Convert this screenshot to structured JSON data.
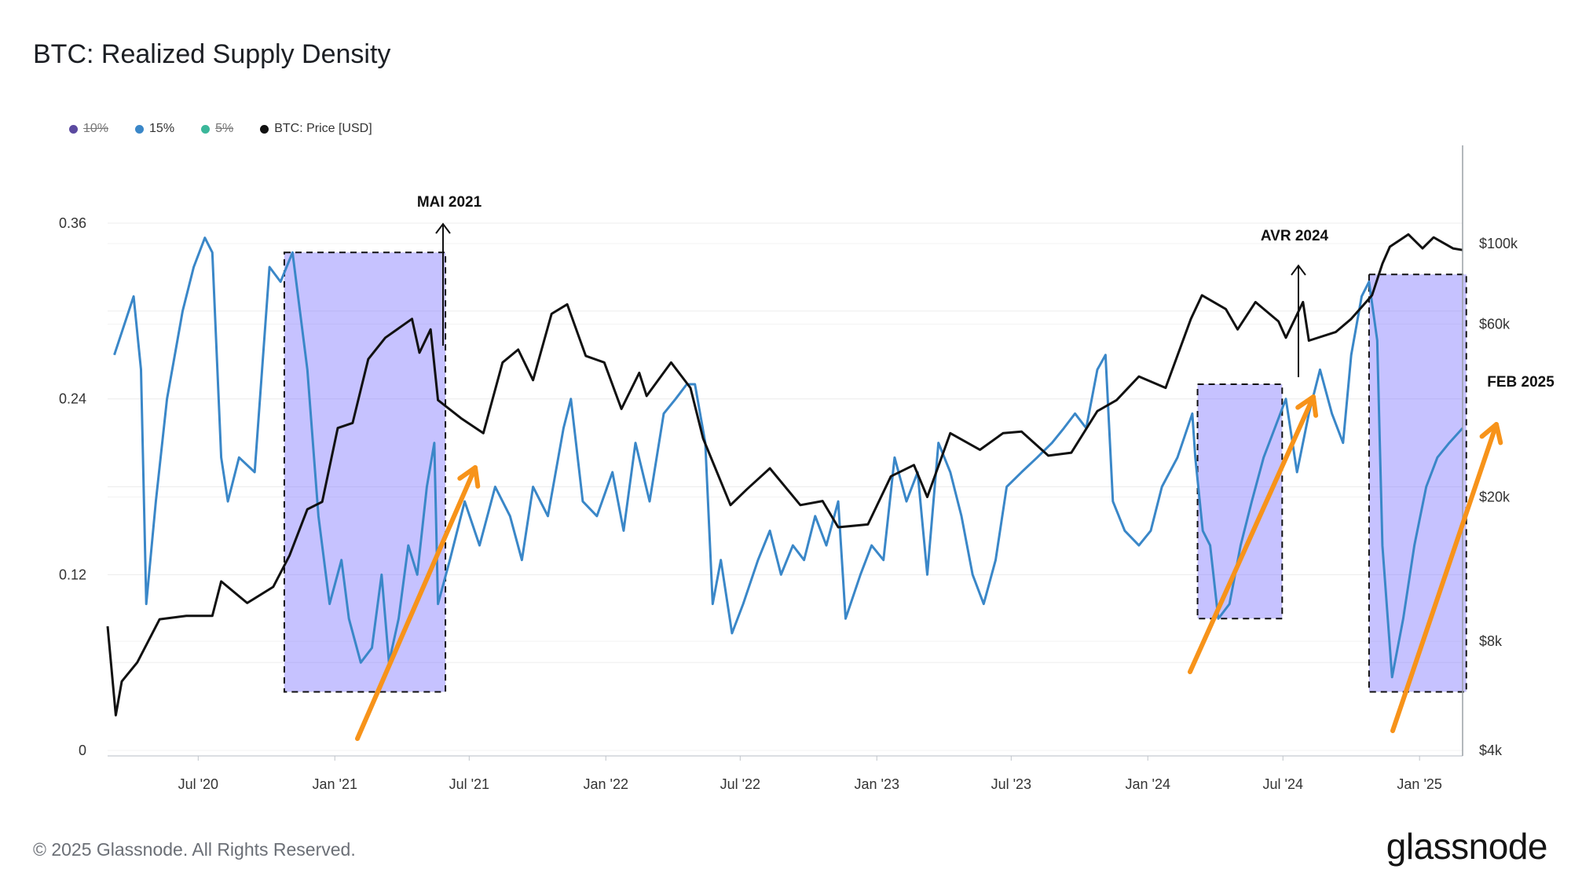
{
  "header": {
    "title": "BTC: Realized Supply Density"
  },
  "legend": [
    {
      "label": "10%",
      "color": "#5b4aa0",
      "active": false
    },
    {
      "label": "15%",
      "color": "#3a87c8",
      "active": true
    },
    {
      "label": "5%",
      "color": "#3bb79a",
      "active": false
    },
    {
      "label": "BTC: Price [USD]",
      "color": "#111111",
      "active": true
    }
  ],
  "footer": {
    "copyright": "© 2025 Glassnode. All Rights Reserved.",
    "brand": "glassnode"
  },
  "chart_data": {
    "type": "line",
    "title": "BTC: Realized Supply Density",
    "x_ticks": [
      "Jul '20",
      "Jan '21",
      "Jul '21",
      "Jan '22",
      "Jul '22",
      "Jan '23",
      "Jul '23",
      "Jan '24",
      "Jul '24",
      "Jan '25"
    ],
    "x_range": [
      "2020-03-01",
      "2025-02-28"
    ],
    "y_left": {
      "ticks": [
        "0.36",
        "0.24",
        "0.12",
        "0"
      ],
      "range": [
        0,
        0.36
      ]
    },
    "y_right": {
      "ticks": [
        "$100k",
        "$60k",
        "$20k",
        "$8k",
        "$4k"
      ],
      "scale": "log",
      "range": [
        4000,
        100000
      ]
    },
    "grid": true,
    "series": [
      {
        "name": "15%",
        "axis": "left",
        "color": "#3a87c8",
        "points": [
          [
            "2020-03-10",
            0.27
          ],
          [
            "2020-04-05",
            0.31
          ],
          [
            "2020-04-15",
            0.26
          ],
          [
            "2020-04-22",
            0.1
          ],
          [
            "2020-05-05",
            0.17
          ],
          [
            "2020-05-20",
            0.24
          ],
          [
            "2020-06-10",
            0.3
          ],
          [
            "2020-06-25",
            0.33
          ],
          [
            "2020-07-10",
            0.35
          ],
          [
            "2020-07-20",
            0.34
          ],
          [
            "2020-08-01",
            0.2
          ],
          [
            "2020-08-10",
            0.17
          ],
          [
            "2020-08-25",
            0.2
          ],
          [
            "2020-09-15",
            0.19
          ],
          [
            "2020-10-05",
            0.33
          ],
          [
            "2020-10-20",
            0.32
          ],
          [
            "2020-11-05",
            0.34
          ],
          [
            "2020-11-25",
            0.26
          ],
          [
            "2020-12-10",
            0.16
          ],
          [
            "2020-12-25",
            0.1
          ],
          [
            "2021-01-10",
            0.13
          ],
          [
            "2021-01-20",
            0.09
          ],
          [
            "2021-02-05",
            0.06
          ],
          [
            "2021-02-20",
            0.07
          ],
          [
            "2021-03-05",
            0.12
          ],
          [
            "2021-03-15",
            0.06
          ],
          [
            "2021-03-28",
            0.09
          ],
          [
            "2021-04-10",
            0.14
          ],
          [
            "2021-04-22",
            0.12
          ],
          [
            "2021-05-05",
            0.18
          ],
          [
            "2021-05-15",
            0.21
          ],
          [
            "2021-05-20",
            0.1
          ],
          [
            "2021-06-05",
            0.13
          ],
          [
            "2021-06-25",
            0.17
          ],
          [
            "2021-07-15",
            0.14
          ],
          [
            "2021-08-05",
            0.18
          ],
          [
            "2021-08-25",
            0.16
          ],
          [
            "2021-09-10",
            0.13
          ],
          [
            "2021-09-25",
            0.18
          ],
          [
            "2021-10-15",
            0.16
          ],
          [
            "2021-11-05",
            0.22
          ],
          [
            "2021-11-15",
            0.24
          ],
          [
            "2021-12-01",
            0.17
          ],
          [
            "2021-12-20",
            0.16
          ],
          [
            "2022-01-10",
            0.19
          ],
          [
            "2022-01-25",
            0.15
          ],
          [
            "2022-02-10",
            0.21
          ],
          [
            "2022-03-01",
            0.17
          ],
          [
            "2022-03-20",
            0.23
          ],
          [
            "2022-04-05",
            0.24
          ],
          [
            "2022-04-20",
            0.25
          ],
          [
            "2022-05-01",
            0.25
          ],
          [
            "2022-05-15",
            0.21
          ],
          [
            "2022-05-25",
            0.1
          ],
          [
            "2022-06-05",
            0.13
          ],
          [
            "2022-06-20",
            0.08
          ],
          [
            "2022-07-05",
            0.1
          ],
          [
            "2022-07-25",
            0.13
          ],
          [
            "2022-08-10",
            0.15
          ],
          [
            "2022-08-25",
            0.12
          ],
          [
            "2022-09-10",
            0.14
          ],
          [
            "2022-09-25",
            0.13
          ],
          [
            "2022-10-10",
            0.16
          ],
          [
            "2022-10-25",
            0.14
          ],
          [
            "2022-11-10",
            0.17
          ],
          [
            "2022-11-20",
            0.09
          ],
          [
            "2022-12-10",
            0.12
          ],
          [
            "2022-12-25",
            0.14
          ],
          [
            "2023-01-10",
            0.13
          ],
          [
            "2023-01-25",
            0.2
          ],
          [
            "2023-02-10",
            0.17
          ],
          [
            "2023-02-25",
            0.19
          ],
          [
            "2023-03-10",
            0.12
          ],
          [
            "2023-03-25",
            0.21
          ],
          [
            "2023-04-10",
            0.19
          ],
          [
            "2023-04-25",
            0.16
          ],
          [
            "2023-05-10",
            0.12
          ],
          [
            "2023-05-25",
            0.1
          ],
          [
            "2023-06-10",
            0.13
          ],
          [
            "2023-06-25",
            0.18
          ],
          [
            "2023-07-15",
            0.19
          ],
          [
            "2023-08-05",
            0.2
          ],
          [
            "2023-08-25",
            0.21
          ],
          [
            "2023-09-10",
            0.22
          ],
          [
            "2023-09-25",
            0.23
          ],
          [
            "2023-10-10",
            0.22
          ],
          [
            "2023-10-25",
            0.26
          ],
          [
            "2023-11-05",
            0.27
          ],
          [
            "2023-11-15",
            0.17
          ],
          [
            "2023-12-01",
            0.15
          ],
          [
            "2023-12-20",
            0.14
          ],
          [
            "2024-01-05",
            0.15
          ],
          [
            "2024-01-20",
            0.18
          ],
          [
            "2024-02-10",
            0.2
          ],
          [
            "2024-03-01",
            0.23
          ],
          [
            "2024-03-05",
            0.2
          ],
          [
            "2024-03-15",
            0.15
          ],
          [
            "2024-03-25",
            0.14
          ],
          [
            "2024-04-05",
            0.09
          ],
          [
            "2024-04-20",
            0.1
          ],
          [
            "2024-05-05",
            0.14
          ],
          [
            "2024-05-20",
            0.17
          ],
          [
            "2024-06-05",
            0.2
          ],
          [
            "2024-06-20",
            0.22
          ],
          [
            "2024-07-05",
            0.24
          ],
          [
            "2024-07-20",
            0.19
          ],
          [
            "2024-08-05",
            0.23
          ],
          [
            "2024-08-20",
            0.26
          ],
          [
            "2024-09-05",
            0.23
          ],
          [
            "2024-09-20",
            0.21
          ],
          [
            "2024-10-01",
            0.27
          ],
          [
            "2024-10-15",
            0.31
          ],
          [
            "2024-10-25",
            0.32
          ],
          [
            "2024-11-05",
            0.28
          ],
          [
            "2024-11-12",
            0.14
          ],
          [
            "2024-11-25",
            0.05
          ],
          [
            "2024-12-10",
            0.09
          ],
          [
            "2024-12-25",
            0.14
          ],
          [
            "2025-01-10",
            0.18
          ],
          [
            "2025-01-25",
            0.2
          ],
          [
            "2025-02-10",
            0.21
          ],
          [
            "2025-02-28",
            0.22
          ]
        ]
      },
      {
        "name": "BTC: Price [USD]",
        "axis": "right",
        "color": "#111111",
        "points": [
          [
            "2020-03-01",
            8800
          ],
          [
            "2020-03-12",
            5000
          ],
          [
            "2020-03-20",
            6200
          ],
          [
            "2020-04-10",
            7000
          ],
          [
            "2020-05-10",
            9200
          ],
          [
            "2020-06-15",
            9400
          ],
          [
            "2020-07-20",
            9400
          ],
          [
            "2020-08-01",
            11700
          ],
          [
            "2020-09-05",
            10200
          ],
          [
            "2020-10-10",
            11300
          ],
          [
            "2020-11-01",
            13800
          ],
          [
            "2020-11-25",
            18500
          ],
          [
            "2020-12-15",
            19400
          ],
          [
            "2021-01-05",
            31000
          ],
          [
            "2021-01-25",
            32000
          ],
          [
            "2021-02-15",
            48000
          ],
          [
            "2021-03-10",
            55000
          ],
          [
            "2021-04-15",
            62000
          ],
          [
            "2021-04-25",
            50000
          ],
          [
            "2021-05-10",
            58000
          ],
          [
            "2021-05-20",
            37000
          ],
          [
            "2021-06-20",
            33000
          ],
          [
            "2021-07-20",
            30000
          ],
          [
            "2021-08-15",
            47000
          ],
          [
            "2021-09-05",
            51000
          ],
          [
            "2021-09-25",
            42000
          ],
          [
            "2021-10-20",
            64000
          ],
          [
            "2021-11-10",
            68000
          ],
          [
            "2021-12-05",
            49000
          ],
          [
            "2021-12-30",
            47000
          ],
          [
            "2022-01-22",
            35000
          ],
          [
            "2022-02-15",
            44000
          ],
          [
            "2022-02-25",
            38000
          ],
          [
            "2022-03-30",
            47000
          ],
          [
            "2022-04-25",
            40000
          ],
          [
            "2022-05-12",
            29000
          ],
          [
            "2022-06-18",
            19000
          ],
          [
            "2022-07-10",
            21000
          ],
          [
            "2022-08-10",
            24000
          ],
          [
            "2022-09-20",
            19000
          ],
          [
            "2022-10-20",
            19500
          ],
          [
            "2022-11-10",
            16500
          ],
          [
            "2022-12-20",
            16800
          ],
          [
            "2023-01-20",
            22800
          ],
          [
            "2023-02-20",
            24500
          ],
          [
            "2023-03-10",
            20000
          ],
          [
            "2023-04-10",
            30000
          ],
          [
            "2023-05-20",
            27000
          ],
          [
            "2023-06-20",
            30000
          ],
          [
            "2023-07-15",
            30300
          ],
          [
            "2023-08-20",
            26000
          ],
          [
            "2023-09-20",
            26500
          ],
          [
            "2023-10-25",
            34500
          ],
          [
            "2023-11-20",
            37000
          ],
          [
            "2023-12-20",
            43000
          ],
          [
            "2024-01-25",
            40000
          ],
          [
            "2024-02-28",
            62000
          ],
          [
            "2024-03-14",
            72000
          ],
          [
            "2024-04-15",
            66000
          ],
          [
            "2024-05-01",
            58000
          ],
          [
            "2024-05-25",
            69000
          ],
          [
            "2024-06-25",
            61000
          ],
          [
            "2024-07-05",
            55000
          ],
          [
            "2024-07-28",
            69000
          ],
          [
            "2024-08-05",
            54000
          ],
          [
            "2024-09-10",
            57000
          ],
          [
            "2024-10-01",
            62000
          ],
          [
            "2024-10-29",
            72000
          ],
          [
            "2024-11-12",
            88000
          ],
          [
            "2024-11-22",
            98000
          ],
          [
            "2024-12-17",
            106000
          ],
          [
            "2025-01-05",
            97000
          ],
          [
            "2025-01-20",
            104000
          ],
          [
            "2025-02-15",
            97000
          ],
          [
            "2025-02-28",
            96000
          ]
        ]
      }
    ],
    "highlight_periods": [
      {
        "start": "2020-10-25",
        "end": "2021-05-30",
        "y_top": 0.34,
        "y_bottom": 0.04
      },
      {
        "start": "2024-03-08",
        "end": "2024-06-30",
        "y_top": 0.25,
        "y_bottom": 0.09
      },
      {
        "start": "2024-10-25",
        "end": "2025-03-05",
        "y_top": 0.325,
        "y_bottom": 0.04
      }
    ],
    "annotations": [
      {
        "label": "MAI 2021",
        "date": "2021-05-30"
      },
      {
        "label": "AVR 2024",
        "date": "2024-06-30"
      },
      {
        "label": "FEB 2025",
        "date": "2025-03-05"
      }
    ]
  }
}
